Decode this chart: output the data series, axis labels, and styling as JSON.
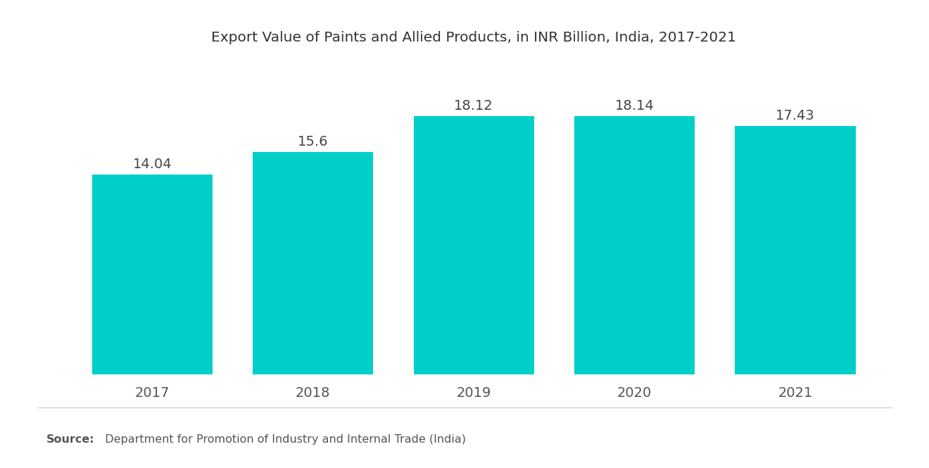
{
  "title": "Export Value of Paints and Allied Products, in INR Billion, India, 2017-2021",
  "categories": [
    "2017",
    "2018",
    "2019",
    "2020",
    "2021"
  ],
  "values": [
    14.04,
    15.6,
    18.12,
    18.14,
    17.43
  ],
  "bar_color": "#00CEC9",
  "background_color": "#FFFFFF",
  "label_fontsize": 14,
  "title_fontsize": 14.5,
  "tick_fontsize": 14,
  "source_label": "Source:",
  "source_text": "  Department for Promotion of Industry and Internal Trade (India)",
  "ylim": [
    0,
    22
  ],
  "bar_width": 0.75
}
